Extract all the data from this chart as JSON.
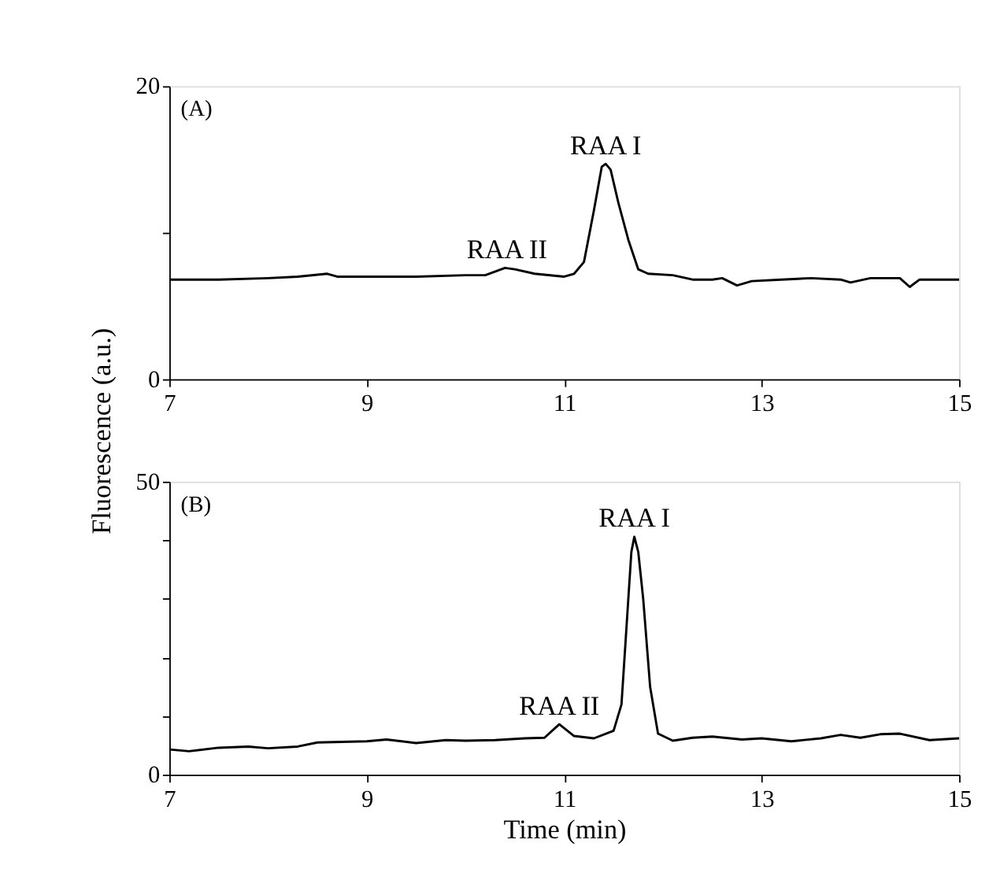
{
  "chart_data": [
    {
      "type": "line",
      "ylabel": "Fluorescence (a.u.)",
      "xlim": [
        7,
        15
      ],
      "xticks": [
        7,
        9,
        11,
        13,
        15
      ],
      "ylim": [
        0,
        20
      ],
      "yticks": [
        0,
        {
          "value": 10,
          "label": null
        },
        20
      ],
      "grid": false,
      "legend": false,
      "line_style": "solid",
      "marker": "none",
      "annotations": [
        "(A)",
        {
          "text": "RAA I",
          "x": 11.42,
          "y": 14.7
        },
        {
          "text": "RAA II",
          "x": 10.42,
          "y": 7.6
        }
      ],
      "series": [
        {
          "color": "#000000",
          "x": [
            7.0,
            7.5,
            8.0,
            8.3,
            8.6,
            8.7,
            9.0,
            9.5,
            10.0,
            10.2,
            10.4,
            10.5,
            10.7,
            11.0,
            11.1,
            11.2,
            11.3,
            11.38,
            11.42,
            11.47,
            11.55,
            11.65,
            11.75,
            11.85,
            12.1,
            12.3,
            12.5,
            12.6,
            12.75,
            12.9,
            13.2,
            13.5,
            13.8,
            13.9,
            14.1,
            14.4,
            14.5,
            14.6,
            15.0
          ],
          "values": [
            6.8,
            6.8,
            6.9,
            7.0,
            7.2,
            7.0,
            7.0,
            7.0,
            7.1,
            7.1,
            7.6,
            7.5,
            7.2,
            7.0,
            7.2,
            8.0,
            11.5,
            14.5,
            14.7,
            14.3,
            12.0,
            9.5,
            7.5,
            7.2,
            7.1,
            6.8,
            6.8,
            6.9,
            6.4,
            6.7,
            6.8,
            6.9,
            6.8,
            6.6,
            6.9,
            6.9,
            6.3,
            6.8,
            6.8
          ]
        }
      ]
    },
    {
      "type": "line",
      "xlabel": "Time (min)",
      "xlim": [
        7,
        15
      ],
      "xticks": [
        7,
        9,
        11,
        13,
        15
      ],
      "ylim": [
        0,
        50
      ],
      "yticks": [
        0,
        {
          "value": 10,
          "label": null
        },
        {
          "value": 20,
          "label": null
        },
        {
          "value": 30,
          "label": null
        },
        {
          "value": 40,
          "label": null
        },
        50
      ],
      "grid": false,
      "legend": false,
      "line_style": "solid",
      "marker": "none",
      "annotations": [
        "(B)",
        {
          "text": "RAA I",
          "x": 11.71,
          "y": 40.6
        },
        {
          "text": "RAA II",
          "x": 10.95,
          "y": 8.6
        }
      ],
      "series": [
        {
          "color": "#000000",
          "x": [
            7.0,
            7.2,
            7.5,
            7.8,
            8.0,
            8.3,
            8.5,
            9.0,
            9.2,
            9.5,
            9.8,
            10.0,
            10.3,
            10.6,
            10.8,
            10.95,
            11.1,
            11.3,
            11.5,
            11.58,
            11.63,
            11.68,
            11.71,
            11.75,
            11.8,
            11.87,
            11.95,
            12.1,
            12.3,
            12.5,
            12.8,
            13.0,
            13.3,
            13.6,
            13.8,
            14.0,
            14.2,
            14.4,
            14.7,
            15.0
          ],
          "values": [
            4.3,
            4.0,
            4.6,
            4.8,
            4.5,
            4.8,
            5.5,
            5.7,
            6.0,
            5.4,
            5.9,
            5.8,
            5.9,
            6.2,
            6.3,
            8.6,
            6.6,
            6.2,
            7.5,
            12.0,
            25.0,
            38.0,
            40.6,
            38.0,
            30.0,
            15.0,
            7.0,
            5.8,
            6.3,
            6.5,
            6.0,
            6.2,
            5.7,
            6.2,
            6.8,
            6.3,
            6.9,
            7.0,
            5.9,
            6.2
          ]
        }
      ]
    }
  ]
}
